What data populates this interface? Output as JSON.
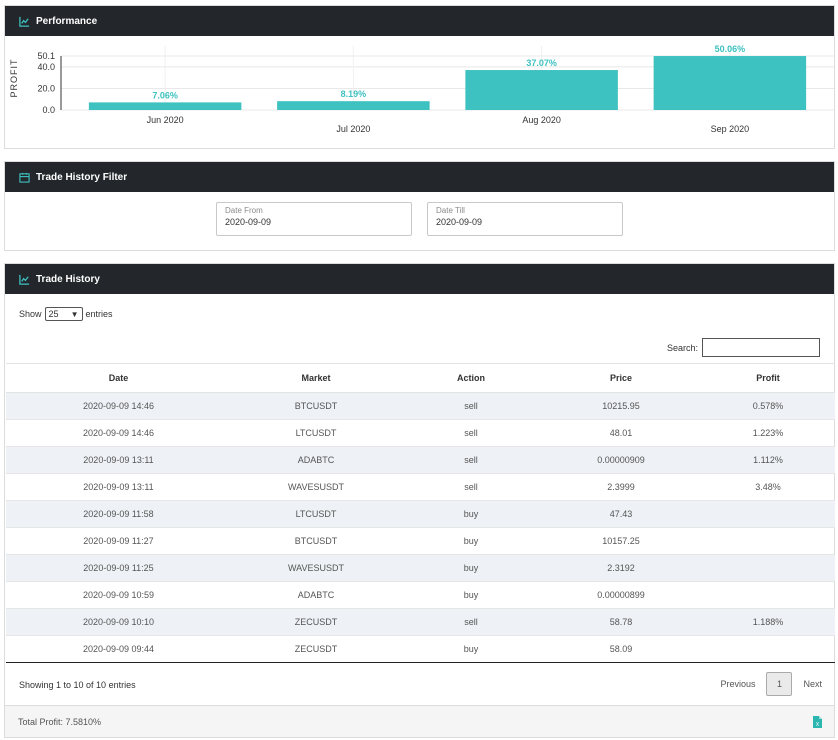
{
  "performance": {
    "title": "Performance",
    "header_icon": "chart-line-icon",
    "chart_data": {
      "type": "bar",
      "categories": [
        "Jun 2020",
        "Jul 2020",
        "Aug 2020",
        "Sep 2020"
      ],
      "values": [
        7.06,
        8.19,
        37.07,
        50.06
      ],
      "data_labels": [
        "7.06%",
        "8.19%",
        "37.07%",
        "50.06%"
      ],
      "ylabel": "PROFIT",
      "yticks": [
        "0.0",
        "20.0",
        "40.0",
        "50.1"
      ],
      "ylim": [
        0,
        50.1
      ],
      "bar_color": "#3ec1c1",
      "grid": true
    }
  },
  "filter": {
    "title": "Trade History Filter",
    "header_icon": "calendar-icon",
    "date_from": {
      "label": "Date From",
      "value": "2020-09-09"
    },
    "date_till": {
      "label": "Date Till",
      "value": "2020-09-09"
    }
  },
  "history": {
    "title": "Trade History",
    "header_icon": "chart-line-icon",
    "show_label": "Show",
    "entries_value": "25",
    "entries_label": "entries",
    "search_label": "Search:",
    "columns": [
      "Date",
      "Market",
      "Action",
      "Price",
      "Profit"
    ],
    "rows": [
      [
        "2020-09-09 14:46",
        "BTCUSDT",
        "sell",
        "10215.95",
        "0.578%"
      ],
      [
        "2020-09-09 14:46",
        "LTCUSDT",
        "sell",
        "48.01",
        "1.223%"
      ],
      [
        "2020-09-09 13:11",
        "ADABTC",
        "sell",
        "0.00000909",
        "1.112%"
      ],
      [
        "2020-09-09 13:11",
        "WAVESUSDT",
        "sell",
        "2.3999",
        "3.48%"
      ],
      [
        "2020-09-09 11:58",
        "LTCUSDT",
        "buy",
        "47.43",
        ""
      ],
      [
        "2020-09-09 11:27",
        "BTCUSDT",
        "buy",
        "10157.25",
        ""
      ],
      [
        "2020-09-09 11:25",
        "WAVESUSDT",
        "buy",
        "2.3192",
        ""
      ],
      [
        "2020-09-09 10:59",
        "ADABTC",
        "buy",
        "0.00000899",
        ""
      ],
      [
        "2020-09-09 10:10",
        "ZECUSDT",
        "sell",
        "58.78",
        "1.188%"
      ],
      [
        "2020-09-09 09:44",
        "ZECUSDT",
        "buy",
        "58.09",
        ""
      ]
    ],
    "info": "Showing 1 to 10 of 10 entries",
    "pager": {
      "previous": "Previous",
      "page": "1",
      "next": "Next"
    },
    "total_profit": "Total Profit: 7.5810%",
    "export_icon": "file-excel-icon",
    "accent_color": "#2bb7b0"
  }
}
